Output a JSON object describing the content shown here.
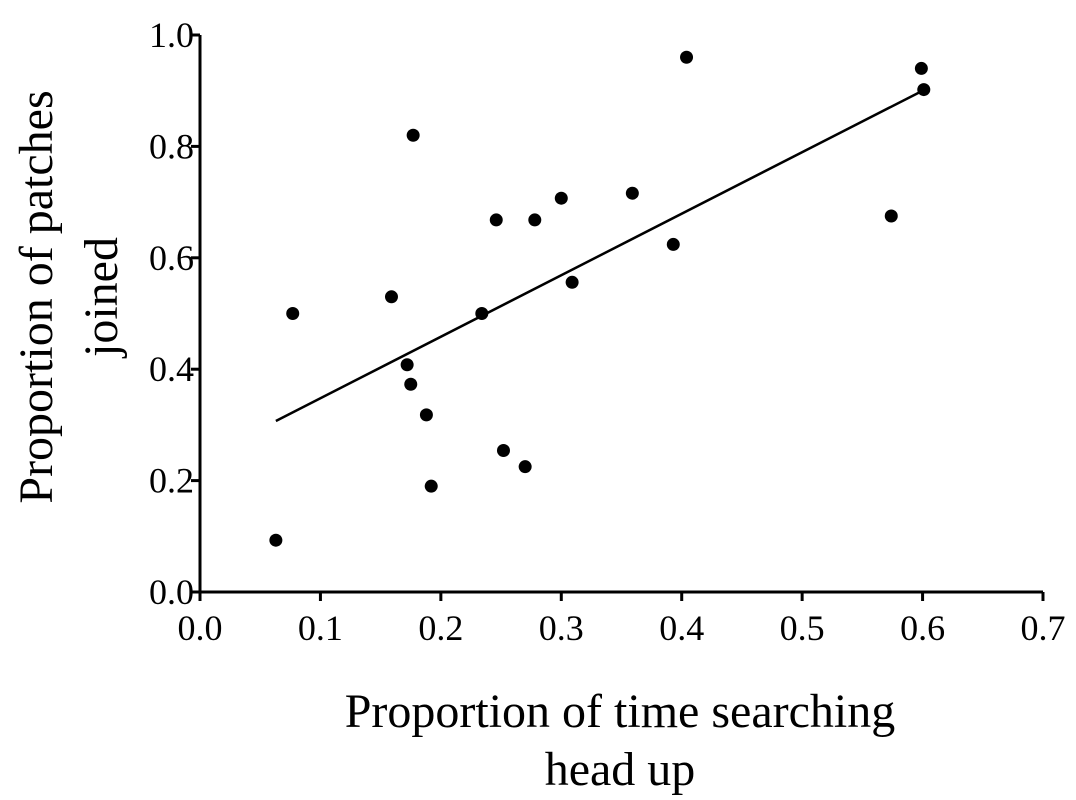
{
  "chart_data": {
    "type": "scatter",
    "title": "",
    "xlabel_lines": [
      "Proportion of time searching",
      "head up"
    ],
    "ylabel_lines": [
      "Proportion of patches",
      "joined"
    ],
    "xlim": [
      0.0,
      0.7
    ],
    "ylim": [
      0.0,
      1.0
    ],
    "x_ticks": [
      "0.0",
      "0.1",
      "0.2",
      "0.3",
      "0.4",
      "0.5",
      "0.6",
      "0.7"
    ],
    "y_ticks": [
      "0.0",
      "0.2",
      "0.4",
      "0.6",
      "0.8",
      "1.0"
    ],
    "grid": false,
    "legend": "none",
    "points": [
      {
        "x": 0.063,
        "y": 0.093
      },
      {
        "x": 0.077,
        "y": 0.5
      },
      {
        "x": 0.159,
        "y": 0.53
      },
      {
        "x": 0.172,
        "y": 0.408
      },
      {
        "x": 0.175,
        "y": 0.373
      },
      {
        "x": 0.177,
        "y": 0.82
      },
      {
        "x": 0.188,
        "y": 0.318
      },
      {
        "x": 0.192,
        "y": 0.19
      },
      {
        "x": 0.234,
        "y": 0.5
      },
      {
        "x": 0.246,
        "y": 0.668
      },
      {
        "x": 0.252,
        "y": 0.254
      },
      {
        "x": 0.27,
        "y": 0.225
      },
      {
        "x": 0.278,
        "y": 0.668
      },
      {
        "x": 0.3,
        "y": 0.707
      },
      {
        "x": 0.309,
        "y": 0.556
      },
      {
        "x": 0.359,
        "y": 0.716
      },
      {
        "x": 0.393,
        "y": 0.624
      },
      {
        "x": 0.404,
        "y": 0.96
      },
      {
        "x": 0.574,
        "y": 0.675
      },
      {
        "x": 0.599,
        "y": 0.94
      },
      {
        "x": 0.601,
        "y": 0.902
      }
    ],
    "trend_line": {
      "x": [
        0.063,
        0.6
      ],
      "y": [
        0.307,
        0.9
      ]
    }
  }
}
